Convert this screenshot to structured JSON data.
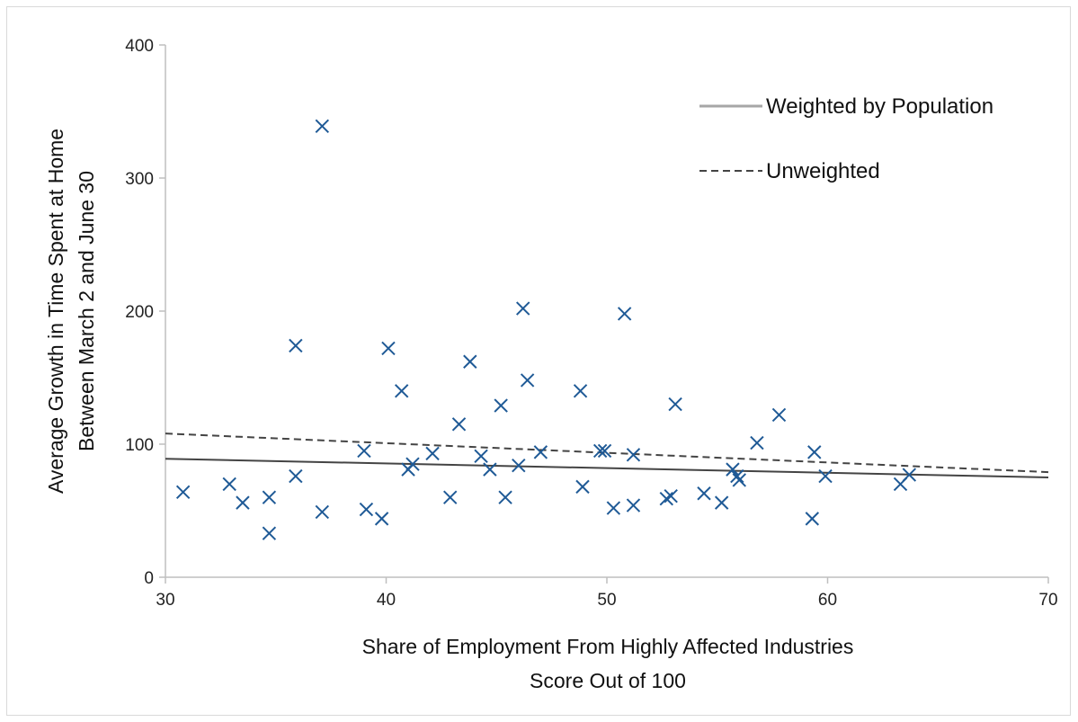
{
  "chart_data": {
    "type": "scatter",
    "xlabel_lines": [
      "Share of Employment From Highly Affected Industries",
      "Score Out of 100"
    ],
    "ylabel_lines": [
      "Average Growth in Time Spent at Home",
      "Between March 2 and June 30"
    ],
    "xlim": [
      30,
      70
    ],
    "ylim": [
      0,
      400
    ],
    "x_ticks": [
      30,
      40,
      50,
      60,
      70
    ],
    "y_ticks": [
      0,
      100,
      200,
      300,
      400
    ],
    "grid": false,
    "legend_position": "top-right",
    "marker_color": "#1f5a96",
    "points": [
      [
        30.8,
        64
      ],
      [
        32.9,
        70
      ],
      [
        33.5,
        56
      ],
      [
        34.7,
        33
      ],
      [
        34.7,
        60
      ],
      [
        35.9,
        174
      ],
      [
        35.9,
        76
      ],
      [
        37.1,
        339
      ],
      [
        37.1,
        49
      ],
      [
        39.0,
        95
      ],
      [
        39.1,
        51
      ],
      [
        39.8,
        44
      ],
      [
        40.1,
        172
      ],
      [
        40.7,
        140
      ],
      [
        41.0,
        81
      ],
      [
        41.2,
        85
      ],
      [
        42.1,
        93
      ],
      [
        42.9,
        60
      ],
      [
        43.3,
        115
      ],
      [
        43.8,
        162
      ],
      [
        44.3,
        91
      ],
      [
        44.7,
        81
      ],
      [
        45.2,
        129
      ],
      [
        45.4,
        60
      ],
      [
        46.0,
        84
      ],
      [
        46.2,
        202
      ],
      [
        46.4,
        148
      ],
      [
        47.0,
        94
      ],
      [
        48.8,
        140
      ],
      [
        48.9,
        68
      ],
      [
        49.7,
        95
      ],
      [
        49.9,
        95
      ],
      [
        50.3,
        52
      ],
      [
        50.8,
        198
      ],
      [
        51.2,
        92
      ],
      [
        51.2,
        54
      ],
      [
        52.7,
        59
      ],
      [
        52.9,
        61
      ],
      [
        53.1,
        130
      ],
      [
        54.4,
        63
      ],
      [
        55.2,
        56
      ],
      [
        55.7,
        81
      ],
      [
        55.9,
        76
      ],
      [
        56.0,
        73
      ],
      [
        56.8,
        101
      ],
      [
        57.8,
        122
      ],
      [
        59.3,
        44
      ],
      [
        59.4,
        94
      ],
      [
        59.9,
        76
      ],
      [
        63.3,
        70
      ],
      [
        63.7,
        77
      ]
    ],
    "series": [
      {
        "name": "Weighted by Population",
        "style": "solid",
        "color": "#444444",
        "x": [
          30,
          70
        ],
        "y": [
          89,
          75
        ]
      },
      {
        "name": "Unweighted",
        "style": "dashed",
        "color": "#444444",
        "x": [
          30,
          70
        ],
        "y": [
          108,
          79
        ]
      }
    ]
  }
}
